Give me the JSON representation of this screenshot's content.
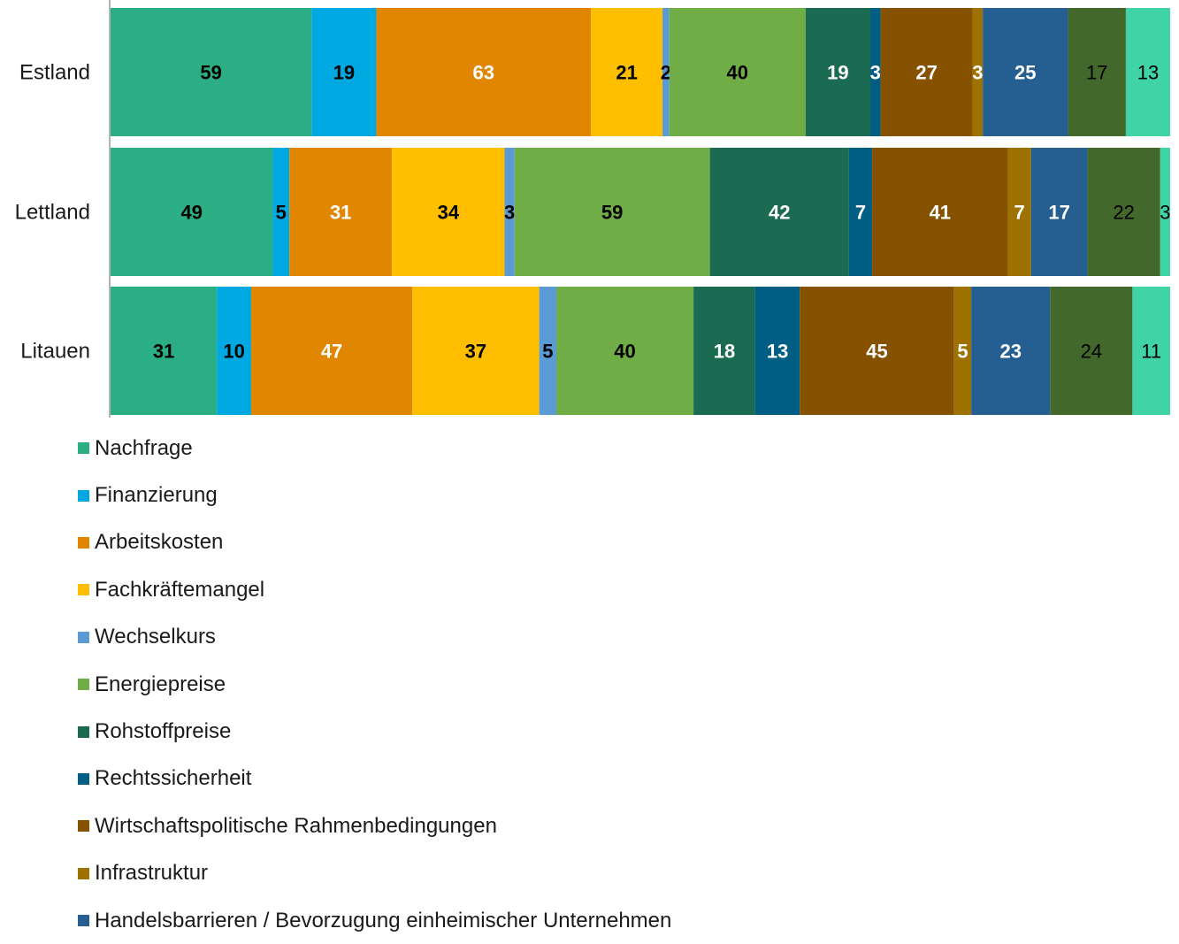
{
  "chart_data": {
    "type": "bar",
    "orientation": "horizontal",
    "stacked": true,
    "categories": [
      "Estland",
      "Lettland",
      "Litauen"
    ],
    "series": [
      {
        "name": "Nachfrage",
        "color": "#2BAE84",
        "values": [
          59,
          49,
          31
        ],
        "label_color": "#000000",
        "bold": true
      },
      {
        "name": "Finanzierung",
        "color": "#00A8E1",
        "values": [
          19,
          5,
          10
        ],
        "label_color": "#000000",
        "bold": true
      },
      {
        "name": "Arbeitskosten",
        "color": "#E08600",
        "values": [
          63,
          31,
          47
        ],
        "label_color": "#FFFFFF",
        "bold": true
      },
      {
        "name": "Fachkräftemangel",
        "color": "#FFBE00",
        "values": [
          21,
          34,
          37
        ],
        "label_color": "#000000",
        "bold": true
      },
      {
        "name": "Wechselkurs",
        "color": "#5B9BD5",
        "values": [
          2,
          3,
          5
        ],
        "label_color": "#000000",
        "bold": true
      },
      {
        "name": "Energiepreise",
        "color": "#70AD47",
        "values": [
          40,
          59,
          40
        ],
        "label_color": "#000000",
        "bold": true
      },
      {
        "name": "Rohstoffpreise",
        "color": "#1A6B52",
        "values": [
          19,
          42,
          18
        ],
        "label_color": "#FFFFFF",
        "bold": true
      },
      {
        "name": "Rechtssicherheit",
        "color": "#005E85",
        "values": [
          3,
          7,
          13
        ],
        "label_color": "#FFFFFF",
        "bold": true
      },
      {
        "name": "Wirtschaftspolitische Rahmenbedingungen",
        "color": "#875200",
        "values": [
          27,
          41,
          45
        ],
        "label_color": "#FFFFFF",
        "bold": true
      },
      {
        "name": "Infrastruktur",
        "color": "#9E7200",
        "values": [
          3,
          7,
          5
        ],
        "label_color": "#FFFFFF",
        "bold": true
      },
      {
        "name": "Handelsbarrieren / Bevorzugung einheimischer Unternehmen",
        "color": "#255E91",
        "values": [
          25,
          17,
          23
        ],
        "label_color": "#FFFFFF",
        "bold": true
      },
      {
        "name": "",
        "color": "#43682B",
        "values": [
          17,
          22,
          24
        ],
        "label_color": "#000000",
        "bold": false
      },
      {
        "name": "",
        "color": "#3FD3A5",
        "values": [
          13,
          3,
          11
        ],
        "label_color": "#000000",
        "bold": false
      }
    ],
    "legend": "bottom-left",
    "grid": false
  }
}
